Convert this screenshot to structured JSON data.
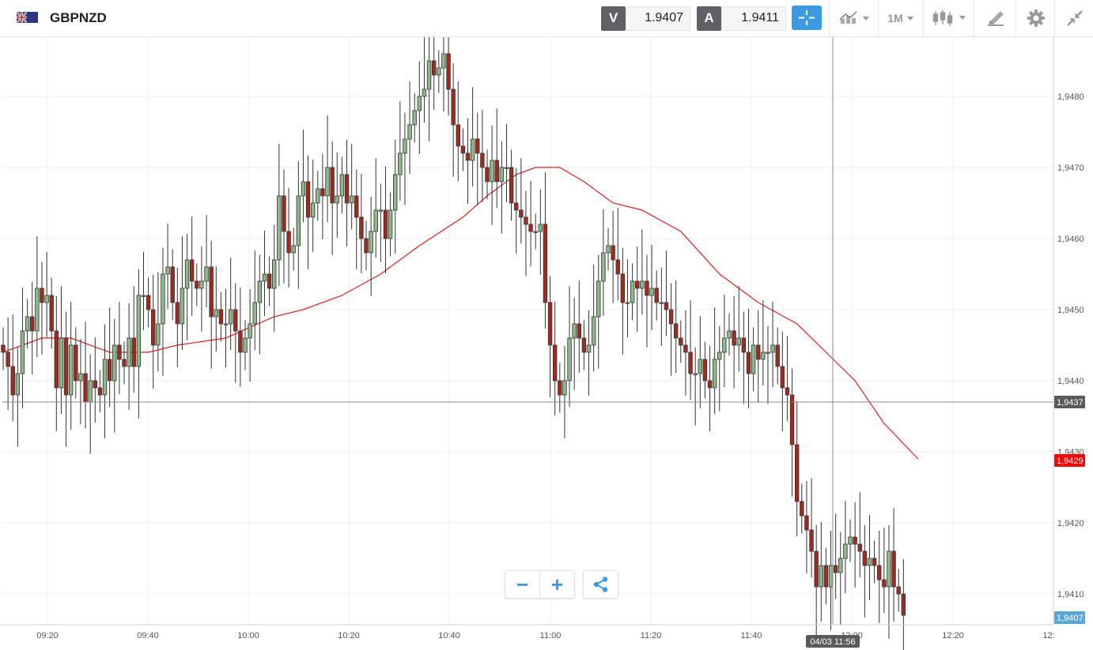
{
  "header": {
    "symbol": "GBPNZD",
    "bid_label": "V",
    "bid_value": "1.9407",
    "ask_label": "A",
    "ask_value": "1.9411",
    "timeframe": "1M",
    "icons": [
      "crosshair-icon",
      "line-chart-icon",
      "candlestick-icon",
      "drawing-tool-icon",
      "gear-icon",
      "collapse-icon"
    ]
  },
  "zoom": {
    "minus": "−",
    "plus": "+"
  },
  "colors": {
    "bull": "#8fb98a",
    "bear": "#9e2b20",
    "ma": "#e02020",
    "grid": "#ececec",
    "accent": "#3b9ae1"
  },
  "chart_data": {
    "type": "candlestick",
    "y_ticks": [
      "1,9410",
      "1,9420",
      "1,9430",
      "1,9440",
      "1,9450",
      "1,9460",
      "1,9470",
      "1,9480"
    ],
    "x_ticks": [
      "09:20",
      "09:40",
      "10:00",
      "10:20",
      "10:40",
      "11:00",
      "11:20",
      "11:40",
      "12:00",
      "12:20",
      "12:"
    ],
    "ylim": [
      1.9403,
      1.9489
    ],
    "crosshair": {
      "price_label": "1,9437",
      "time_label": "04/03 11:56",
      "price": 1.9437,
      "time": "11:56"
    },
    "ma_label": "1,9429",
    "last_label": "1,9407",
    "start_time": "09:11",
    "closes": [
      1.9444,
      1.9442,
      1.9438,
      1.9441,
      1.9447,
      1.9449,
      1.9447,
      1.9453,
      1.9451,
      1.9452,
      1.9447,
      1.9439,
      1.9446,
      1.9438,
      1.9445,
      1.944,
      1.9441,
      1.9437,
      1.944,
      1.9439,
      1.9438,
      1.9443,
      1.944,
      1.9445,
      1.9443,
      1.9442,
      1.9446,
      1.9442,
      1.9452,
      1.9452,
      1.945,
      1.9445,
      1.9448,
      1.9455,
      1.9456,
      1.9451,
      1.9448,
      1.9453,
      1.9457,
      1.9454,
      1.9453,
      1.9454,
      1.9456,
      1.9449,
      1.945,
      1.9448,
      1.9448,
      1.945,
      1.9447,
      1.9444,
      1.9446,
      1.9448,
      1.9451,
      1.9454,
      1.9455,
      1.9453,
      1.9457,
      1.9466,
      1.9461,
      1.9458,
      1.9459,
      1.9466,
      1.9468,
      1.9463,
      1.9465,
      1.9467,
      1.9466,
      1.947,
      1.9465,
      1.9466,
      1.9469,
      1.9465,
      1.9466,
      1.9463,
      1.946,
      1.9458,
      1.9461,
      1.9464,
      1.9464,
      1.946,
      1.9464,
      1.9469,
      1.9472,
      1.9474,
      1.9476,
      1.9478,
      1.948,
      1.9481,
      1.9485,
      1.9483,
      1.9484,
      1.9486,
      1.9481,
      1.9476,
      1.9473,
      1.9472,
      1.9471,
      1.9474,
      1.9472,
      1.947,
      1.9468,
      1.9471,
      1.9468,
      1.947,
      1.947,
      1.9465,
      1.9464,
      1.9463,
      1.9462,
      1.9461,
      1.9461,
      1.9462,
      1.9451,
      1.9445,
      1.944,
      1.9438,
      1.944,
      1.9446,
      1.9448,
      1.9446,
      1.9444,
      1.9445,
      1.9449,
      1.9454,
      1.9458,
      1.9459,
      1.9457,
      1.9455,
      1.9451,
      1.9451,
      1.9454,
      1.9453,
      1.9454,
      1.9452,
      1.9453,
      1.9451,
      1.9451,
      1.945,
      1.9448,
      1.9446,
      1.9445,
      1.9444,
      1.9441,
      1.9441,
      1.9443,
      1.944,
      1.9439,
      1.9443,
      1.9444,
      1.9446,
      1.9447,
      1.9445,
      1.9446,
      1.9444,
      1.9441,
      1.9445,
      1.9443,
      1.9444,
      1.9444,
      1.9445,
      1.9442,
      1.9439,
      1.9438,
      1.9431,
      1.9423,
      1.9421,
      1.9419,
      1.9416,
      1.9411,
      1.9414,
      1.9411,
      1.9414,
      1.9413,
      1.9415,
      1.9417,
      1.9418,
      1.9417,
      1.9416,
      1.9414,
      1.9415,
      1.9414,
      1.9412,
      1.9411,
      1.9416,
      1.9411,
      1.941,
      1.9407
    ],
    "ma": [
      [
        0,
        1.9444
      ],
      [
        8,
        1.9446
      ],
      [
        14,
        1.9446
      ],
      [
        22,
        1.9444
      ],
      [
        30,
        1.9444
      ],
      [
        36,
        1.9445
      ],
      [
        46,
        1.9446
      ],
      [
        56,
        1.9449
      ],
      [
        62,
        1.945
      ],
      [
        70,
        1.9452
      ],
      [
        78,
        1.9455
      ],
      [
        86,
        1.9459
      ],
      [
        95,
        1.9463
      ],
      [
        100,
        1.9466
      ],
      [
        106,
        1.9469
      ],
      [
        110,
        1.947
      ],
      [
        115,
        1.947
      ],
      [
        120,
        1.9468
      ],
      [
        126,
        1.9465
      ],
      [
        132,
        1.9464
      ],
      [
        140,
        1.9461
      ],
      [
        148,
        1.9455
      ],
      [
        156,
        1.9451
      ],
      [
        164,
        1.9448
      ],
      [
        170,
        1.9444
      ],
      [
        176,
        1.944
      ],
      [
        182,
        1.9434
      ],
      [
        189,
        1.9429
      ]
    ]
  }
}
